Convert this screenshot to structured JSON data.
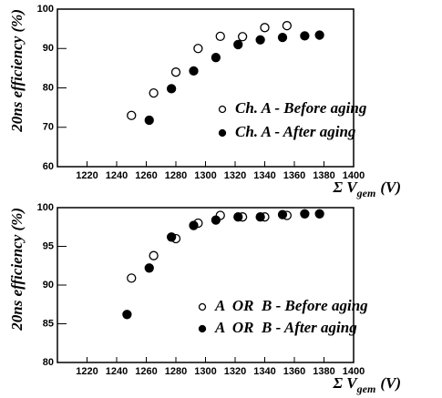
{
  "chart_data": [
    {
      "type": "scatter",
      "y_label": "20ns efficiency (%)",
      "x_label": [
        "Σ V",
        "gem",
        "(V)"
      ],
      "xlim": [
        1200,
        1400
      ],
      "xticks": [
        1220,
        1240,
        1260,
        1280,
        1300,
        1320,
        1340,
        1360,
        1380,
        1400
      ],
      "ylim": [
        60,
        100
      ],
      "yticks": [
        60,
        70,
        80,
        90,
        100
      ],
      "series": [
        {
          "name": "Ch. A - Before aging",
          "color": "#000000",
          "marker": "open",
          "x": [
            1250,
            1265,
            1280,
            1295,
            1310,
            1325,
            1340,
            1355
          ],
          "values": [
            73,
            78.7,
            84,
            90,
            93.1,
            93,
            95.3,
            95.8
          ]
        },
        {
          "name": "Ch. A - After aging",
          "color": "#000000",
          "marker": "filled",
          "x": [
            1262,
            1277,
            1292,
            1307,
            1322,
            1337,
            1352,
            1367,
            1377
          ],
          "values": [
            71.8,
            79.8,
            84.3,
            87.7,
            91,
            92.2,
            92.8,
            93.2,
            93.4
          ]
        }
      ]
    },
    {
      "type": "scatter",
      "y_label": "20ns efficiency (%)",
      "x_label": [
        "Σ V",
        "gem",
        "(V)"
      ],
      "xlim": [
        1200,
        1400
      ],
      "xticks": [
        1220,
        1240,
        1260,
        1280,
        1300,
        1320,
        1340,
        1360,
        1380,
        1400
      ],
      "ylim": [
        80,
        100
      ],
      "yticks": [
        80,
        85,
        90,
        95,
        100
      ],
      "series": [
        {
          "name": "A  OR  B - Before aging",
          "color": "#000000",
          "marker": "open",
          "x": [
            1250,
            1265,
            1280,
            1295,
            1310,
            1325,
            1340,
            1355
          ],
          "values": [
            90.9,
            93.8,
            96,
            98,
            99,
            98.8,
            98.8,
            99
          ]
        },
        {
          "name": "A  OR  B - After aging",
          "color": "#000000",
          "marker": "filled",
          "x": [
            1247,
            1262,
            1277,
            1292,
            1307,
            1322,
            1337,
            1352,
            1367,
            1377
          ],
          "values": [
            86.2,
            92.2,
            96.2,
            97.7,
            98.4,
            98.8,
            98.8,
            99.1,
            99.2,
            99.2
          ]
        }
      ]
    }
  ]
}
